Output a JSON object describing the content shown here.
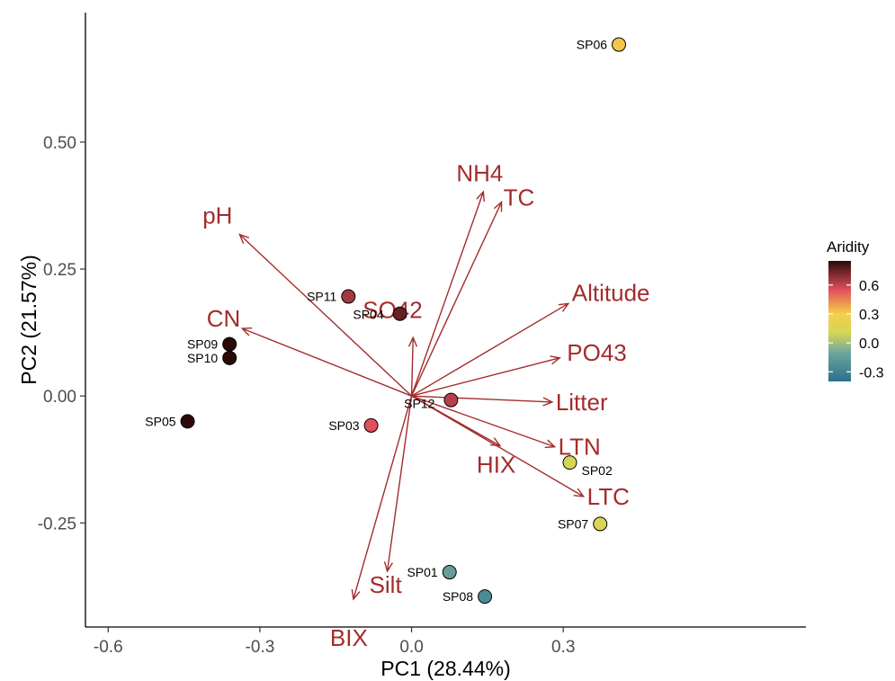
{
  "chart_data": {
    "type": "scatter",
    "subtype": "pca-biplot",
    "xlabel": "PC1 (28.44%)",
    "ylabel": "PC2 (21.57%)",
    "xlim": [
      -0.645,
      0.78
    ],
    "ylim": [
      -0.455,
      0.755
    ],
    "xticks": [
      -0.6,
      -0.3,
      0.0,
      0.3
    ],
    "xtick_labels": [
      "-0.6",
      "-0.3",
      "0.0",
      "0.3"
    ],
    "yticks": [
      -0.25,
      0.0,
      0.25,
      0.5
    ],
    "ytick_labels": [
      "-0.25",
      "0.00",
      "0.25",
      "0.50"
    ],
    "grid": false,
    "points": [
      {
        "label": "SP01",
        "x": 0.075,
        "y": -0.347,
        "aridity": -0.15
      },
      {
        "label": "SP02",
        "x": 0.313,
        "y": -0.131,
        "aridity": 0.1
      },
      {
        "label": "SP03",
        "x": -0.08,
        "y": -0.058,
        "aridity": 0.55
      },
      {
        "label": "SP04",
        "x": -0.023,
        "y": 0.162,
        "aridity": 0.75
      },
      {
        "label": "SP05",
        "x": -0.443,
        "y": -0.05,
        "aridity": 0.95
      },
      {
        "label": "SP06",
        "x": 0.41,
        "y": 0.692,
        "aridity": 0.32
      },
      {
        "label": "SP07",
        "x": 0.373,
        "y": -0.252,
        "aridity": 0.15
      },
      {
        "label": "SP08",
        "x": 0.145,
        "y": -0.395,
        "aridity": -0.25
      },
      {
        "label": "SP09",
        "x": -0.36,
        "y": 0.102,
        "aridity": 0.9
      },
      {
        "label": "SP10",
        "x": -0.36,
        "y": 0.075,
        "aridity": 0.92
      },
      {
        "label": "SP11",
        "x": -0.125,
        "y": 0.196,
        "aridity": 0.65
      },
      {
        "label": "SP12",
        "x": 0.078,
        "y": -0.008,
        "aridity": 0.62
      }
    ],
    "vectors": [
      {
        "label": "pH",
        "x": -0.34,
        "y": 0.318
      },
      {
        "label": "CN",
        "x": -0.335,
        "y": 0.133
      },
      {
        "label": "NH4",
        "x": 0.142,
        "y": 0.402
      },
      {
        "label": "TC",
        "x": 0.178,
        "y": 0.382
      },
      {
        "label": "SO42",
        "x": 0.003,
        "y": 0.115
      },
      {
        "label": "Altitude",
        "x": 0.31,
        "y": 0.182
      },
      {
        "label": "PO43",
        "x": 0.293,
        "y": 0.075
      },
      {
        "label": "Litter",
        "x": 0.278,
        "y": -0.012
      },
      {
        "label": "LTN",
        "x": 0.283,
        "y": -0.1
      },
      {
        "label": "HIX",
        "x": 0.175,
        "y": -0.098
      },
      {
        "label": "LTC",
        "x": 0.34,
        "y": -0.198
      },
      {
        "label": "Silt",
        "x": -0.048,
        "y": -0.345
      },
      {
        "label": "BIX",
        "x": -0.115,
        "y": -0.4
      }
    ],
    "colorbar": {
      "title": "Aridity",
      "range": [
        -0.4,
        0.85
      ],
      "ticks": [
        -0.3,
        0.0,
        0.3,
        0.6
      ],
      "tick_labels": [
        "-0.3",
        "0.0",
        "0.3",
        "0.6"
      ],
      "stops": [
        {
          "value": -0.4,
          "color": "#2b6f8c"
        },
        {
          "value": -0.1,
          "color": "#6fa79c"
        },
        {
          "value": 0.1,
          "color": "#d4d556"
        },
        {
          "value": 0.3,
          "color": "#f5cf48"
        },
        {
          "value": 0.55,
          "color": "#e0505e"
        },
        {
          "value": 0.85,
          "color": "#2a0a08"
        }
      ]
    },
    "colors": {
      "vector": "#a32c2c",
      "axis": "#000000",
      "tick_label": "#4d4d4d"
    }
  }
}
